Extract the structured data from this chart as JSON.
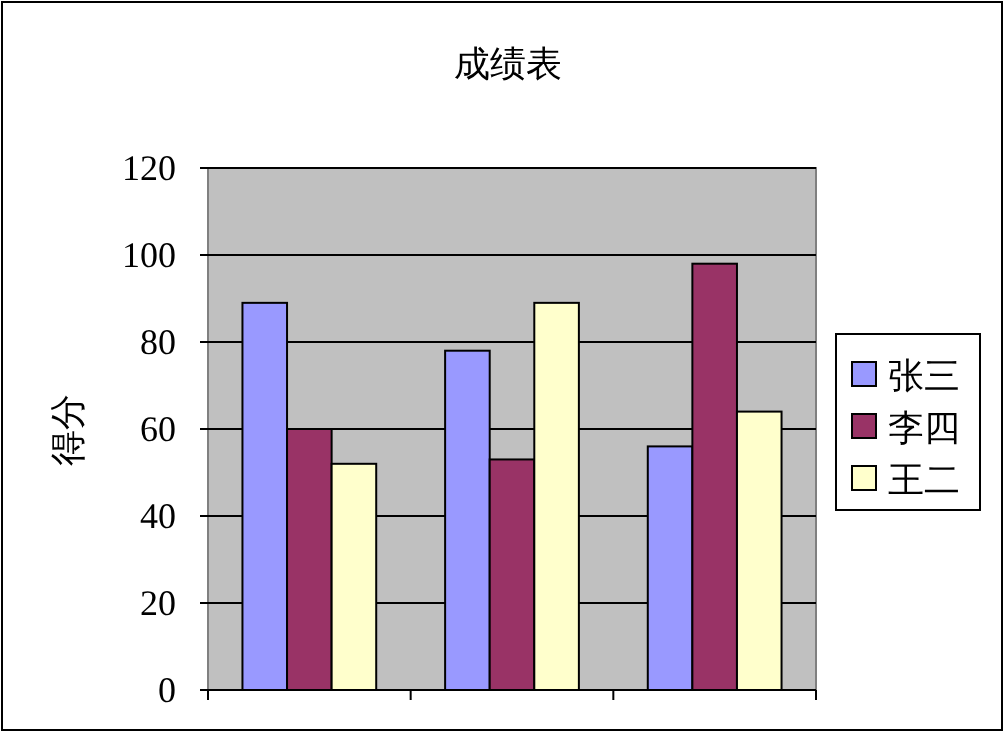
{
  "chart_data": {
    "type": "bar",
    "title": "成绩表",
    "ylabel": "得分",
    "categories": [
      null,
      null,
      null
    ],
    "series": [
      {
        "name": "张三",
        "color": "#9999ff",
        "values": [
          89,
          78,
          56
        ]
      },
      {
        "name": "李四",
        "color": "#993366",
        "values": [
          60,
          53,
          98
        ]
      },
      {
        "name": "王二",
        "color": "#ffffcc",
        "values": [
          52,
          89,
          64
        ]
      }
    ],
    "ylim": [
      0,
      120
    ],
    "yticks": [
      0,
      20,
      40,
      60,
      80,
      100,
      120
    ],
    "grid": "y",
    "legend": "right"
  }
}
